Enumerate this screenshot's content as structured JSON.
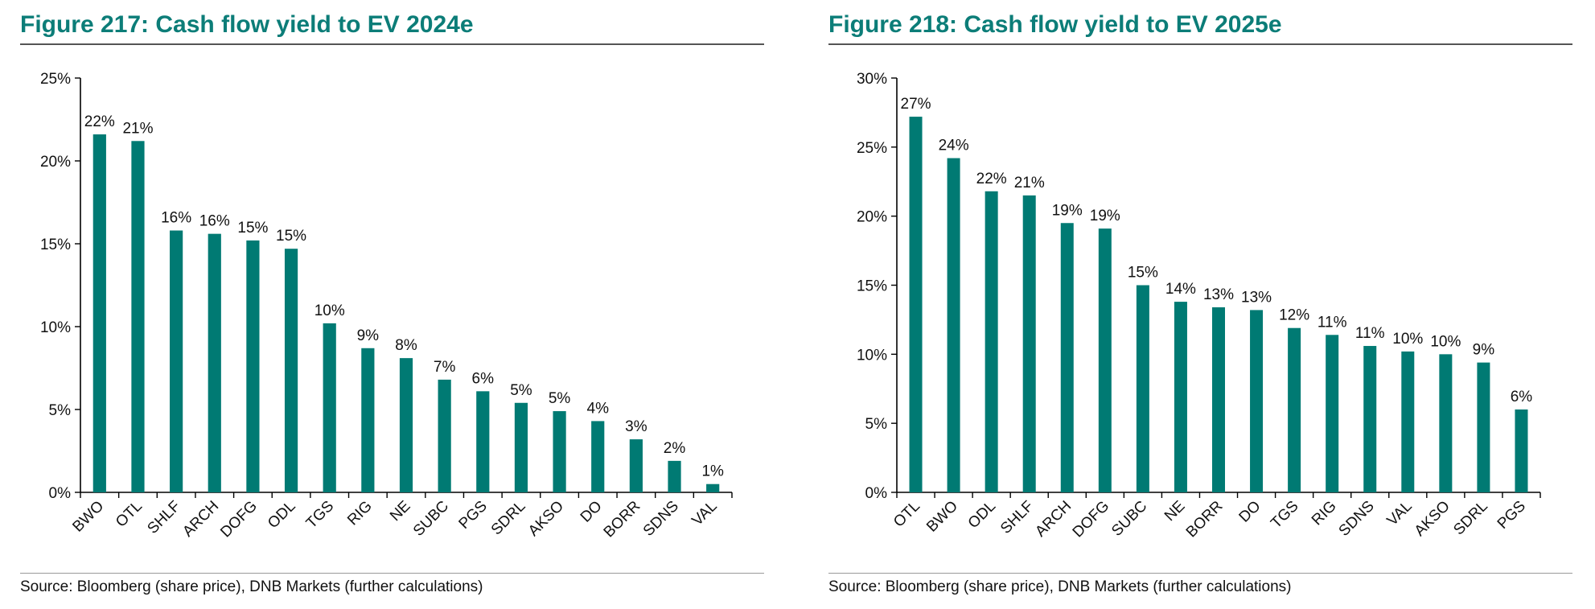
{
  "colors": {
    "bar": "#007a73",
    "title": "#0c7d78",
    "axis": "#000000"
  },
  "chart_data": [
    {
      "type": "bar",
      "title": "Figure 217: Cash flow yield to EV 2024e",
      "source": "Source: Bloomberg (share price), DNB Markets (further calculations)",
      "categories": [
        "BWO",
        "OTL",
        "SHLF",
        "ARCH",
        "DOFG",
        "ODL",
        "TGS",
        "RIG",
        "NE",
        "SUBC",
        "PGS",
        "SDRL",
        "AKSO",
        "DO",
        "BORR",
        "SDNS",
        "VAL"
      ],
      "values": [
        21.6,
        21.2,
        15.8,
        15.6,
        15.2,
        14.7,
        10.2,
        8.7,
        8.1,
        6.8,
        6.1,
        5.4,
        4.9,
        4.3,
        3.2,
        1.9,
        0.5
      ],
      "data_labels": [
        "22%",
        "21%",
        "16%",
        "16%",
        "15%",
        "15%",
        "10%",
        "9%",
        "8%",
        "7%",
        "6%",
        "5%",
        "5%",
        "4%",
        "3%",
        "2%",
        "1%"
      ],
      "y_ticks": [
        "0%",
        "5%",
        "10%",
        "15%",
        "20%",
        "25%"
      ],
      "ylim": [
        0,
        25
      ],
      "ystep": 5,
      "grid": false,
      "legend": "none"
    },
    {
      "type": "bar",
      "title": "Figure 218: Cash flow yield to EV 2025e",
      "source": "Source: Bloomberg (share price), DNB Markets (further calculations)",
      "categories": [
        "OTL",
        "BWO",
        "ODL",
        "SHLF",
        "ARCH",
        "DOFG",
        "SUBC",
        "NE",
        "BORR",
        "DO",
        "TGS",
        "RIG",
        "SDNS",
        "VAL",
        "AKSO",
        "SDRL",
        "PGS"
      ],
      "values": [
        27.2,
        24.2,
        21.8,
        21.5,
        19.5,
        19.1,
        15.0,
        13.8,
        13.4,
        13.2,
        11.9,
        11.4,
        10.6,
        10.2,
        10.0,
        9.4,
        6.0
      ],
      "data_labels": [
        "27%",
        "24%",
        "22%",
        "21%",
        "19%",
        "19%",
        "15%",
        "14%",
        "13%",
        "13%",
        "12%",
        "11%",
        "11%",
        "10%",
        "10%",
        "9%",
        "6%"
      ],
      "y_ticks": [
        "0%",
        "5%",
        "10%",
        "15%",
        "20%",
        "25%",
        "30%"
      ],
      "ylim": [
        0,
        30
      ],
      "ystep": 5,
      "grid": false,
      "legend": "none"
    }
  ]
}
